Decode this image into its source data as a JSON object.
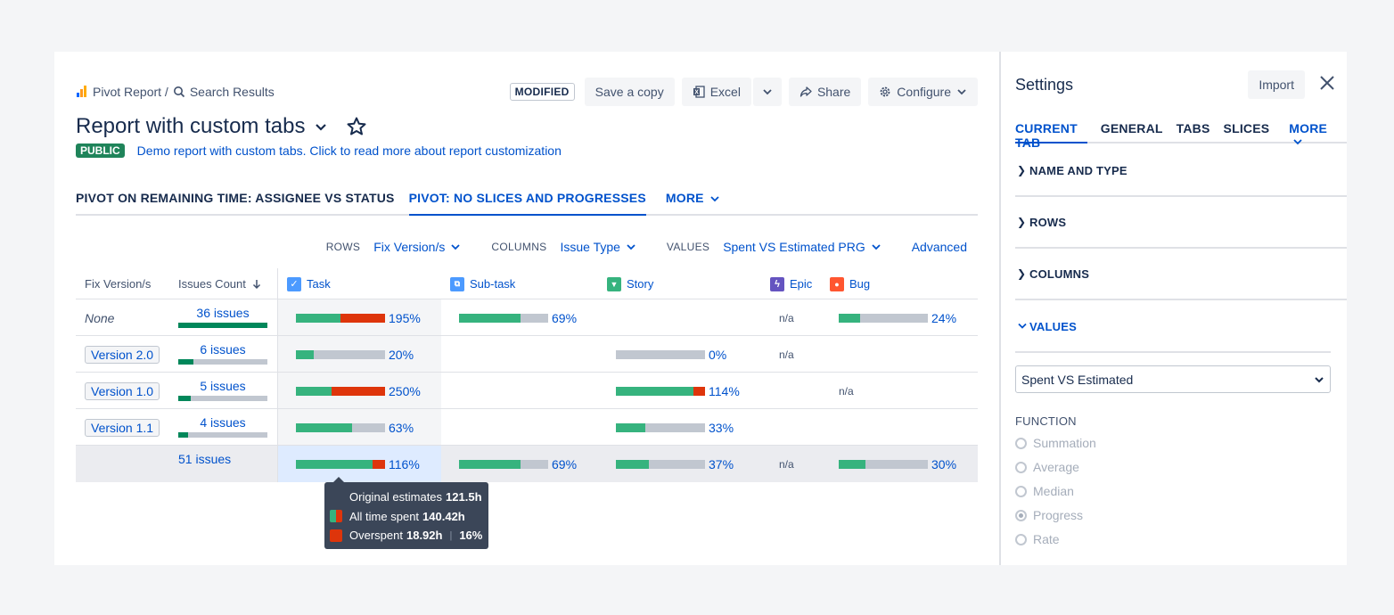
{
  "breadcrumb": {
    "root": "Pivot Report /",
    "current": "Search Results"
  },
  "toolbar": {
    "modified": "MODIFIED",
    "save_copy": "Save a copy",
    "excel": "Excel",
    "share": "Share",
    "configure": "Configure"
  },
  "report": {
    "title": "Report with custom tabs",
    "visibility": "PUBLIC",
    "description": "Demo report with custom tabs. Click to read more about report customization"
  },
  "tabs": {
    "tab1": "PIVOT ON REMAINING TIME: ASSIGNEE VS STATUS",
    "tab2": "PIVOT: NO SLICES AND PROGRESSES",
    "more": "MORE"
  },
  "controls": {
    "rows_label": "ROWS",
    "rows_value": "Fix Version/s",
    "columns_label": "COLUMNS",
    "columns_value": "Issue Type",
    "values_label": "VALUES",
    "values_value": "Spent VS Estimated PRG",
    "advanced": "Advanced"
  },
  "table": {
    "headers": {
      "fix_version": "Fix Version/s",
      "issues_count": "Issues Count",
      "task": "Task",
      "subtask": "Sub-task",
      "story": "Story",
      "epic": "Epic",
      "bug": "Bug"
    },
    "rows": [
      {
        "version": "None",
        "issues": "36 issues",
        "task": "195%",
        "subtask": "69%",
        "story": "",
        "epic": "n/a",
        "bug": "24%"
      },
      {
        "version": "Version 2.0",
        "issues": "6 issues",
        "task": "20%",
        "subtask": "",
        "story": "0%",
        "epic": "n/a",
        "bug": ""
      },
      {
        "version": "Version 1.0",
        "issues": "5 issues",
        "task": "250%",
        "subtask": "",
        "story": "114%",
        "epic": "",
        "bug": "n/a"
      },
      {
        "version": "Version 1.1",
        "issues": "4 issues",
        "task": "63%",
        "subtask": "",
        "story": "33%",
        "epic": "",
        "bug": ""
      },
      {
        "version": "",
        "issues": "51 issues",
        "task": "116%",
        "subtask": "69%",
        "story": "37%",
        "epic": "n/a",
        "bug": "30%"
      }
    ]
  },
  "tooltip": {
    "estimates_label": "Original estimates",
    "estimates_value": "121.5h",
    "spent_label": "All time spent",
    "spent_value": "140.42h",
    "overspent_label": "Overspent",
    "overspent_value": "18.92h",
    "overspent_pct": "16%"
  },
  "settings": {
    "title": "Settings",
    "import": "Import",
    "tabs": {
      "current": "CURRENT TAB",
      "general": "GENERAL",
      "tabs": "TABS",
      "slices": "SLICES",
      "more": "MORE"
    },
    "sections": {
      "name_type": "NAME AND TYPE",
      "rows": "ROWS",
      "columns": "COLUMNS",
      "values": "VALUES"
    },
    "select_value": "Spent VS Estimated",
    "function_label": "FUNCTION",
    "functions": {
      "f1": "Summation",
      "f2": "Average",
      "f3": "Median",
      "f4": "Progress",
      "f5": "Rate"
    }
  },
  "colors": {
    "accent": "#0052cc",
    "progress_green": "#36b37e",
    "overspent_red": "#de350b",
    "public_badge": "#1f845a"
  }
}
